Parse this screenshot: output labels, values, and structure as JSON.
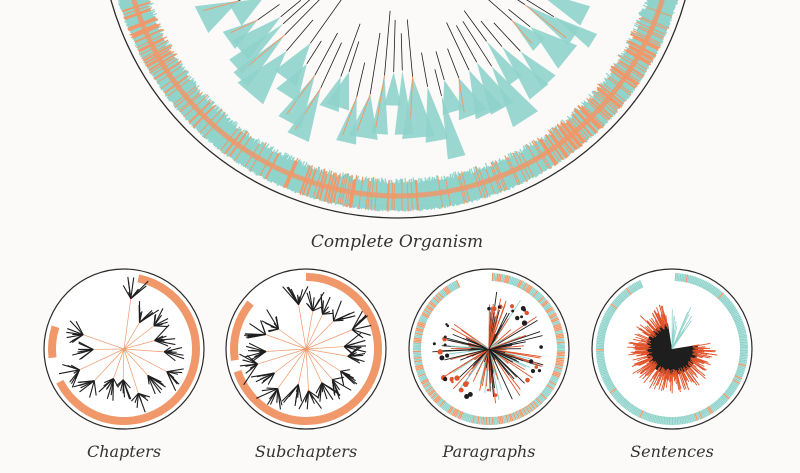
{
  "main_label": "Complete Organism",
  "small_labels": [
    "Chapters",
    "Subchapters",
    "Paragraphs",
    "Sentences"
  ],
  "colors": {
    "teal": "#8fd3cb",
    "orange": "#f0986a",
    "dark": "#1e1e1e",
    "red": "#e0532b",
    "outline": "#2a2a2a",
    "paper": "#fbfaf8"
  }
}
